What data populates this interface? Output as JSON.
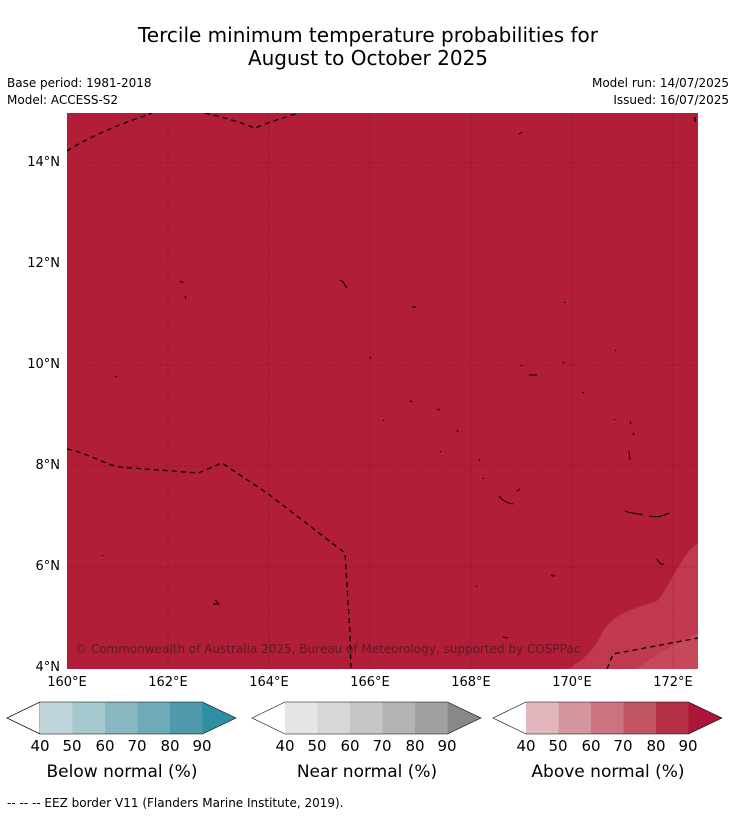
{
  "title": {
    "line1": "Tercile minimum temperature probabilities for",
    "line2": "August to October 2025"
  },
  "meta": {
    "base_period": "Base period: 1981-2018",
    "model": "Model: ACCESS-S2",
    "model_run": "Model run: 14/07/2025",
    "issued": "Issued: 16/07/2025"
  },
  "map": {
    "fill_color": "#b21d38",
    "lighter_fill_color": "#c0394e",
    "lightest_fill_color": "#c8485b",
    "y_ticks": [
      "14°N",
      "12°N",
      "10°N",
      "8°N",
      "6°N",
      "4°N"
    ],
    "x_ticks": [
      "160°E",
      "162°E",
      "164°E",
      "166°E",
      "168°E",
      "170°E",
      "172°E"
    ],
    "copyright": "© Commonwealth of Australia 2025, Bureau of Meteorology, supported by COSPPac"
  },
  "legend": {
    "below": {
      "label": "Below normal (%)",
      "colors": [
        "#bfd5db",
        "#a6c8cf",
        "#88b6c1",
        "#6eaab8",
        "#4e99ab",
        "#2f8fa2"
      ]
    },
    "near": {
      "label": "Near normal (%)",
      "colors": [
        "#e6e6e6",
        "#d7d7d7",
        "#c6c6c6",
        "#b3b3b3",
        "#a0a0a0",
        "#888888"
      ]
    },
    "above": {
      "label": "Above normal (%)",
      "colors": [
        "#e2b6bc",
        "#d5959e",
        "#ca7480",
        "#c05463",
        "#b52f45",
        "#ab1638"
      ]
    },
    "ticks": [
      "40",
      "50",
      "60",
      "70",
      "80",
      "90"
    ]
  },
  "footer": "--  --  -- EEZ border V11 (Flanders Marine Institute, 2019)."
}
